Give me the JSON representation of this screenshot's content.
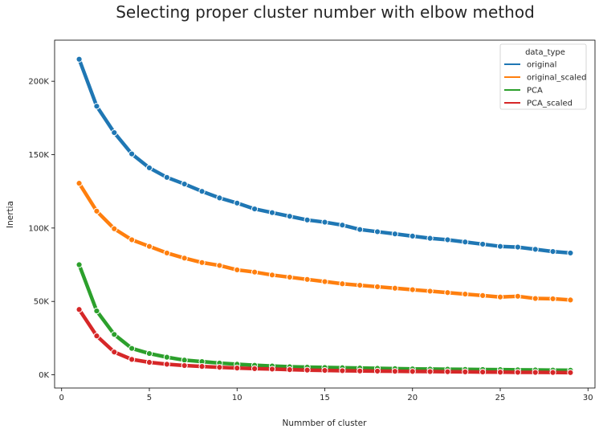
{
  "chart_data": {
    "type": "line",
    "title": "Selecting proper cluster number with elbow method",
    "xlabel": "Nummber of cluster",
    "ylabel": "Inertia",
    "xlim": [
      -0.4,
      30.4
    ],
    "ylim": [
      -9000,
      228000
    ],
    "x_ticks": [
      0,
      5,
      10,
      15,
      20,
      25,
      30
    ],
    "y_ticks": [
      0,
      50000,
      100000,
      150000,
      200000
    ],
    "y_tick_labels": [
      "0K",
      "50K",
      "100K",
      "150K",
      "200K"
    ],
    "grid": false,
    "legend": {
      "title": "data_type",
      "position": "top-right"
    },
    "x": [
      1,
      2,
      3,
      4,
      5,
      6,
      7,
      8,
      9,
      10,
      11,
      12,
      13,
      14,
      15,
      16,
      17,
      18,
      19,
      20,
      21,
      22,
      23,
      24,
      25,
      26,
      27,
      28,
      29
    ],
    "series": [
      {
        "name": "original",
        "color": "#1f77b4",
        "values": [
          215000,
          183000,
          165000,
          150500,
          141000,
          134500,
          130000,
          125000,
          120500,
          117000,
          113000,
          110500,
          108000,
          105500,
          104000,
          102000,
          99000,
          97500,
          96000,
          94500,
          93000,
          92000,
          90500,
          89000,
          87500,
          87000,
          85500,
          84000,
          83000
        ]
      },
      {
        "name": "original_scaled",
        "color": "#ff7f0e",
        "values": [
          130500,
          111500,
          99500,
          92000,
          87500,
          83000,
          79500,
          76500,
          74500,
          71500,
          70000,
          68000,
          66500,
          65000,
          63500,
          62000,
          61000,
          60000,
          59000,
          58000,
          57000,
          56000,
          55000,
          54000,
          53000,
          53500,
          52000,
          51800,
          51000
        ]
      },
      {
        "name": "PCA",
        "color": "#2ca02c",
        "values": [
          75000,
          43500,
          27500,
          18000,
          14500,
          12000,
          10000,
          9000,
          8000,
          7200,
          6500,
          6000,
          5500,
          5200,
          5000,
          4800,
          4600,
          4400,
          4200,
          4000,
          3900,
          3800,
          3700,
          3600,
          3500,
          3400,
          3300,
          3200,
          3100
        ]
      },
      {
        "name": "PCA_scaled",
        "color": "#d62728",
        "values": [
          44500,
          26500,
          15500,
          10500,
          8500,
          7200,
          6300,
          5700,
          5100,
          4600,
          4200,
          3900,
          3500,
          3200,
          3000,
          2800,
          2600,
          2500,
          2400,
          2300,
          2200,
          2100,
          2000,
          1900,
          1800,
          1700,
          1650,
          1600,
          1500
        ]
      }
    ]
  }
}
